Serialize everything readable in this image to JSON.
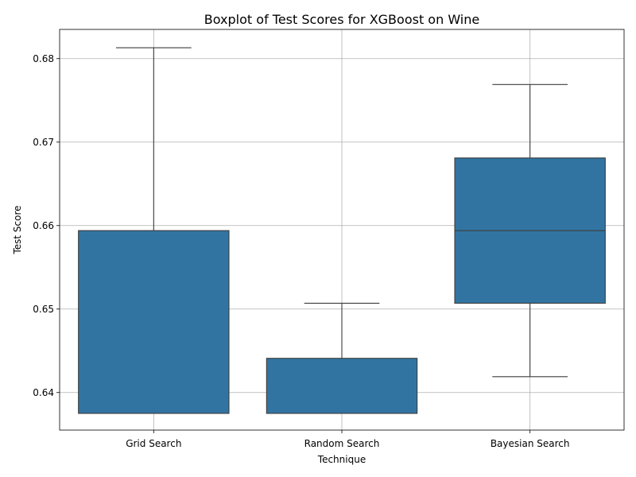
{
  "chart_data": {
    "type": "box",
    "title": "Boxplot of Test Scores for XGBoost on Wine",
    "xlabel": "Technique",
    "ylabel": "Test Score",
    "ylim": [
      0.6355,
      0.6835
    ],
    "yticks": [
      0.64,
      0.65,
      0.66,
      0.67,
      0.68
    ],
    "ytick_labels": [
      "0.64",
      "0.65",
      "0.66",
      "0.67",
      "0.68"
    ],
    "grid": true,
    "box_color": "#3274a1",
    "edge_color": "#3d3d3d",
    "categories": [
      "Grid Search",
      "Random Search",
      "Bayesian Search"
    ],
    "boxes": [
      {
        "whisker_low": 0.6375,
        "q1": 0.6375,
        "median": 0.6375,
        "q3": 0.6594,
        "whisker_high": 0.6813
      },
      {
        "whisker_low": 0.6375,
        "q1": 0.6375,
        "median": 0.6375,
        "q3": 0.6441,
        "whisker_high": 0.6507
      },
      {
        "whisker_low": 0.6419,
        "q1": 0.6507,
        "median": 0.6594,
        "q3": 0.6681,
        "whisker_high": 0.6769
      }
    ]
  }
}
